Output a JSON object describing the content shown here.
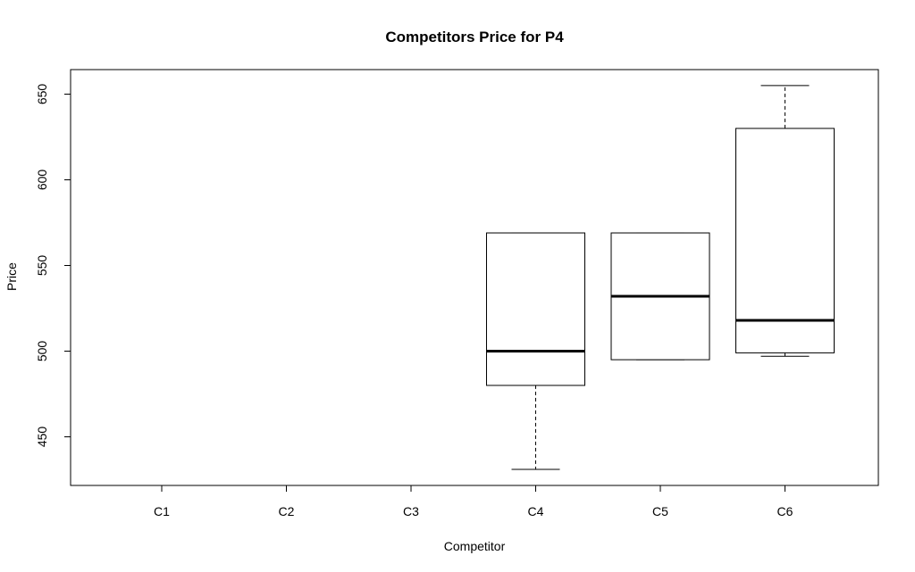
{
  "chart_data": {
    "type": "boxplot",
    "title": "Competitors Price for P4",
    "xlabel": "Competitor",
    "ylabel": "Price",
    "categories": [
      "C1",
      "C2",
      "C3",
      "C4",
      "C5",
      "C6"
    ],
    "yticks": [
      450,
      500,
      550,
      600,
      650
    ],
    "ylim": [
      420,
      662
    ],
    "grid": false,
    "legend": "none",
    "boxes": [
      {
        "category": "C1"
      },
      {
        "category": "C2"
      },
      {
        "category": "C3"
      },
      {
        "category": "C4",
        "min": 431,
        "q1": 480,
        "median": 500,
        "q3": 569,
        "max": 569
      },
      {
        "category": "C5",
        "min": 495,
        "q1": 495,
        "median": 532,
        "q3": 569,
        "max": 569
      },
      {
        "category": "C6",
        "min": 497,
        "q1": 499,
        "median": 518,
        "q3": 630,
        "max": 655
      }
    ]
  }
}
